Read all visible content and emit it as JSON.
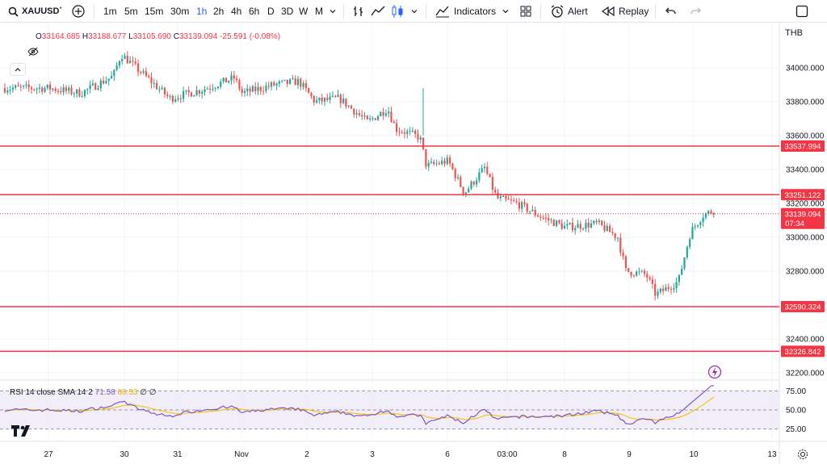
{
  "toolbar": {
    "symbol": "XAUUSD",
    "timeframes": [
      "1m",
      "5m",
      "15m",
      "30m",
      "1h",
      "2h",
      "4h",
      "6h",
      "D",
      "3D",
      "W",
      "M"
    ],
    "active_timeframe": "1h",
    "indicators_label": "Indicators",
    "alert_label": "Alert",
    "replay_label": "Replay"
  },
  "legend": {
    "open_key": "O",
    "open": "33164.685",
    "high_key": "H",
    "high": "33188.677",
    "low_key": "L",
    "low": "33105.690",
    "close_key": "C",
    "close": "33139.094",
    "change": "-25.591 (-0.08%)"
  },
  "currency": "THB",
  "price_axis": [
    "34000.000",
    "33800.000",
    "33600.000",
    "33400.000",
    "33200.000",
    "33000.000",
    "32800.000",
    "32400.000",
    "32200.000"
  ],
  "horizontal_lines": [
    "33537.994",
    "33251.122",
    "32590.324",
    "32326.842"
  ],
  "current_price": "33139.094",
  "countdown": "07:34",
  "time_axis": [
    "27",
    "30",
    "31",
    "Nov",
    "2",
    "3",
    "6",
    "03:00",
    "8",
    "9",
    "10",
    "13"
  ],
  "rsi": {
    "label": "RSI 14 close SMA 14 2",
    "rsi_value": "71.58",
    "sma_value": "68.53",
    "extra": "∅ ∅",
    "levels": [
      "75.00",
      "50.00",
      "25.00"
    ]
  },
  "colors": {
    "up": "#26a69a",
    "down": "#ef5350",
    "level_line": "#f23645",
    "rsi_line": "#7e57c2",
    "sma_line": "#f5c518",
    "accent": "#2962ff"
  }
}
